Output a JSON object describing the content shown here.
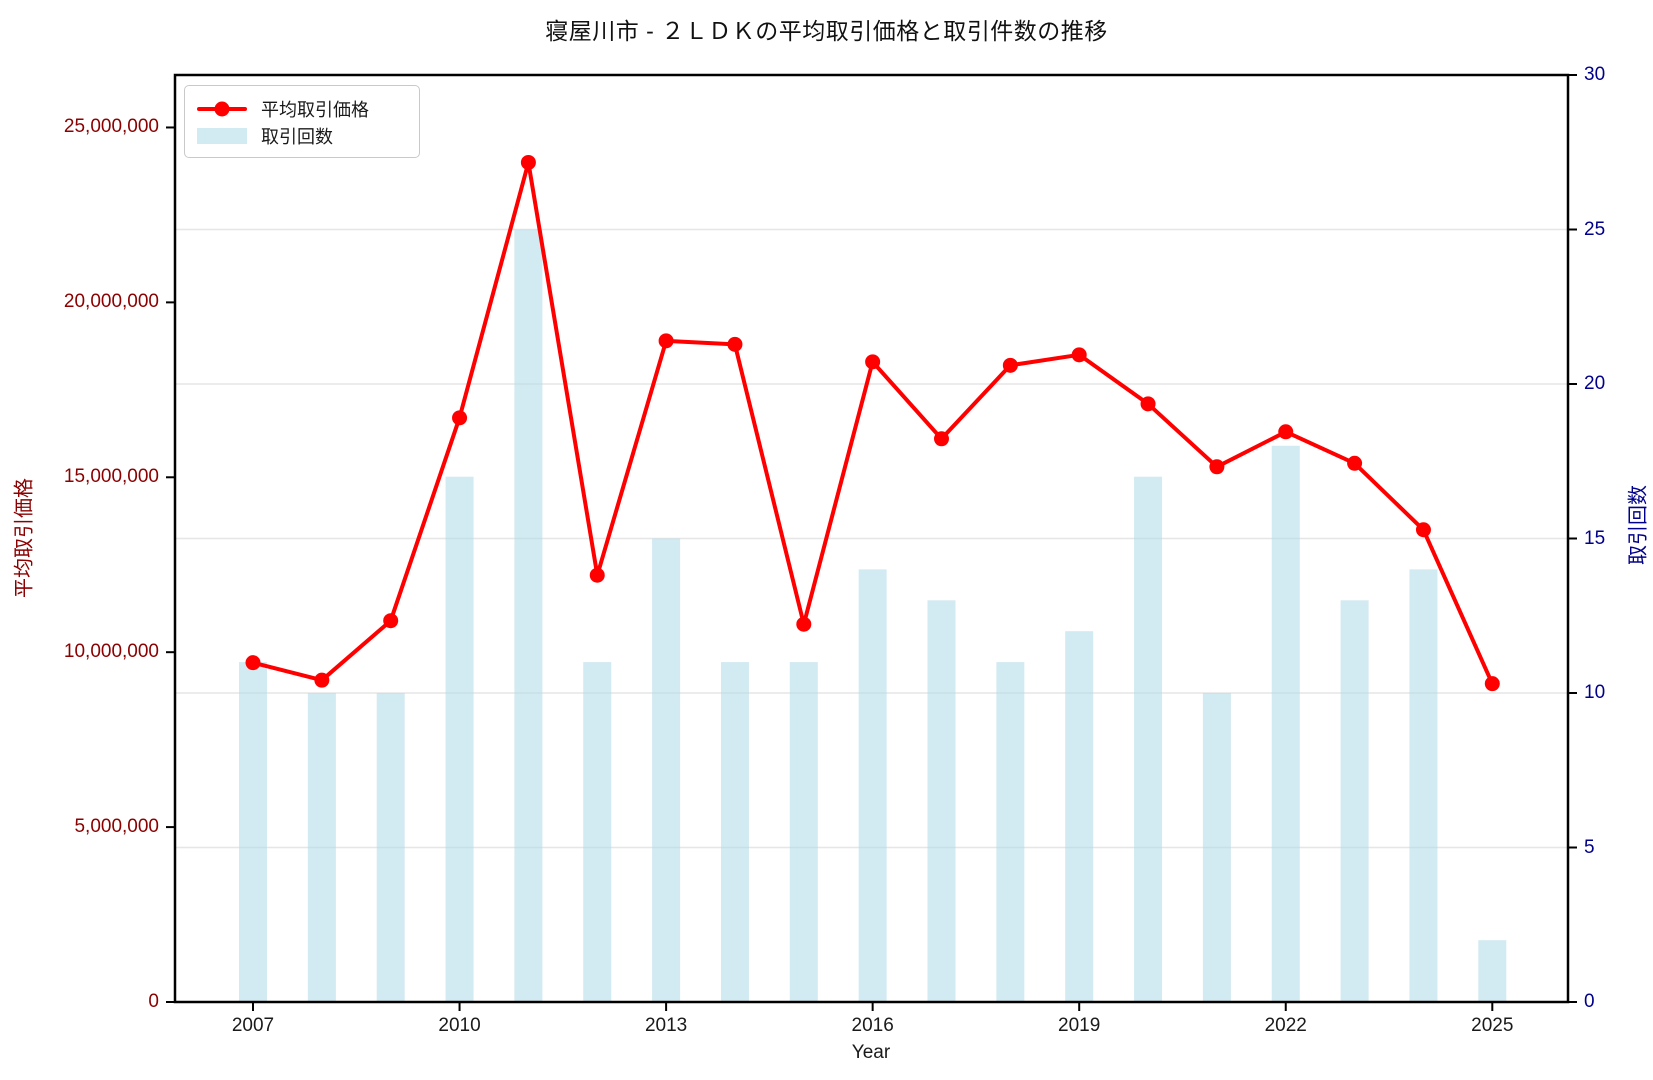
{
  "title": "寝屋川市 - ２ＬＤＫの平均取引価格と取引件数の推移",
  "legend": {
    "price_label": "平均取引価格",
    "count_label": "取引回数"
  },
  "axes": {
    "x_label": "Year",
    "y_left_label": "平均取引価格",
    "y_right_label": "取引回数",
    "x_ticks": [
      2007,
      2010,
      2013,
      2016,
      2019,
      2022,
      2025
    ],
    "y_left_ticks": [
      "0",
      "5,000,000",
      "10,000,000",
      "15,000,000",
      "20,000,000",
      "25,000,000"
    ],
    "y_left_tick_values": [
      0,
      5000000,
      10000000,
      15000000,
      20000000,
      25000000
    ],
    "y_right_ticks": [
      0,
      5,
      10,
      15,
      20,
      25,
      30
    ]
  },
  "colors": {
    "price_line": "#ff0000",
    "count_bar": "#add8e6",
    "count_bar_alpha": 0.55,
    "y_left_text": "#8b0000",
    "y_right_text": "#00008b",
    "grid": "#e6e6e6",
    "spine": "#000000"
  },
  "chart_data": {
    "type": "line+bar",
    "title": "寝屋川市 - ２ＬＤＫの平均取引価格と取引件数の推移",
    "xlabel": "Year",
    "ylabel_left": "平均取引価格",
    "ylabel_right": "取引回数",
    "x": [
      2007,
      2008,
      2009,
      2010,
      2011,
      2012,
      2013,
      2014,
      2015,
      2016,
      2017,
      2018,
      2019,
      2020,
      2021,
      2022,
      2023,
      2024,
      2025
    ],
    "series": [
      {
        "name": "平均取引価格",
        "type": "line",
        "axis": "left",
        "values": [
          9700000,
          9200000,
          10900000,
          16700000,
          24000000,
          12200000,
          18900000,
          18800000,
          10800000,
          18300000,
          16100000,
          18200000,
          18500000,
          17100000,
          15300000,
          16300000,
          15400000,
          13500000,
          9100000
        ]
      },
      {
        "name": "取引回数",
        "type": "bar",
        "axis": "right",
        "values": [
          11,
          10,
          10,
          17,
          25,
          11,
          15,
          11,
          11,
          14,
          13,
          11,
          12,
          17,
          10,
          18,
          13,
          14,
          2
        ]
      }
    ],
    "ylim_left": [
      0,
      26500000
    ],
    "ylim_right": [
      0,
      30
    ],
    "grid": "horizontal gridlines at right-axis ticks 5,10,15,20,25",
    "legend_position": "upper left"
  }
}
